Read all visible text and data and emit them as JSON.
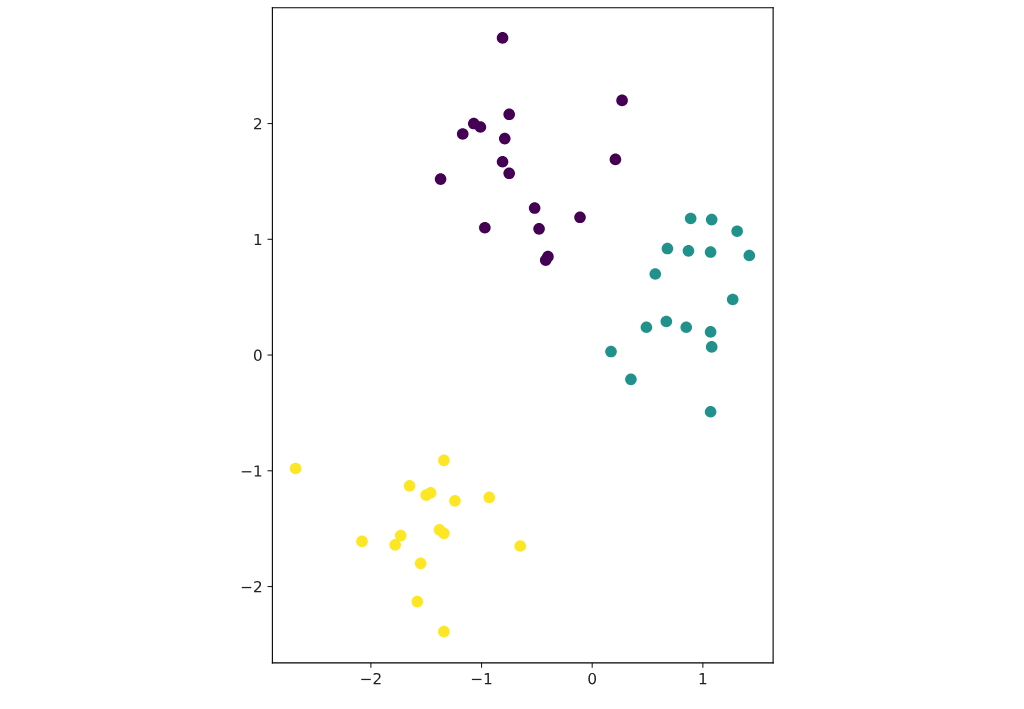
{
  "chart_data": {
    "type": "scatter",
    "marker": "circle",
    "grid": false,
    "xlim": [
      -2.89,
      1.635
    ],
    "ylim": [
      -2.66,
      3.0
    ],
    "xticks": [
      -2,
      -1,
      0,
      1
    ],
    "yticks": [
      -2,
      -1,
      0,
      1,
      2
    ],
    "series": [
      {
        "color": "#440154",
        "x": [
          -0.81,
          0.27,
          -0.75,
          -1.07,
          -1.01,
          -1.17,
          -0.79,
          -0.81,
          -0.75,
          0.21,
          -1.37,
          -0.52,
          -0.11,
          -0.97,
          -0.48,
          -0.4,
          -0.42
        ],
        "values": [
          2.74,
          2.2,
          2.08,
          2.0,
          1.97,
          1.91,
          1.87,
          1.67,
          1.57,
          1.69,
          1.52,
          1.27,
          1.19,
          1.1,
          1.09,
          0.85,
          0.82
        ]
      },
      {
        "color": "#21918c",
        "x": [
          0.89,
          1.08,
          1.31,
          0.68,
          0.87,
          1.07,
          1.42,
          0.57,
          1.27,
          0.49,
          0.67,
          0.85,
          1.07,
          1.08,
          0.17,
          0.35,
          1.07
        ],
        "values": [
          1.18,
          1.17,
          1.07,
          0.92,
          0.9,
          0.89,
          0.86,
          0.7,
          0.48,
          0.24,
          0.29,
          0.24,
          0.2,
          0.07,
          0.03,
          -0.21,
          -0.49
        ]
      },
      {
        "color": "#fde725",
        "x": [
          -2.68,
          -1.34,
          -1.65,
          -1.46,
          -1.5,
          -1.24,
          -0.93,
          -1.38,
          -1.34,
          -1.73,
          -2.08,
          -1.78,
          -0.65,
          -1.55,
          -1.58,
          -1.34
        ],
        "values": [
          -0.98,
          -0.91,
          -1.13,
          -1.19,
          -1.21,
          -1.26,
          -1.23,
          -1.51,
          -1.54,
          -1.56,
          -1.61,
          -1.64,
          -1.65,
          -1.8,
          -2.13,
          -2.39
        ]
      }
    ]
  }
}
